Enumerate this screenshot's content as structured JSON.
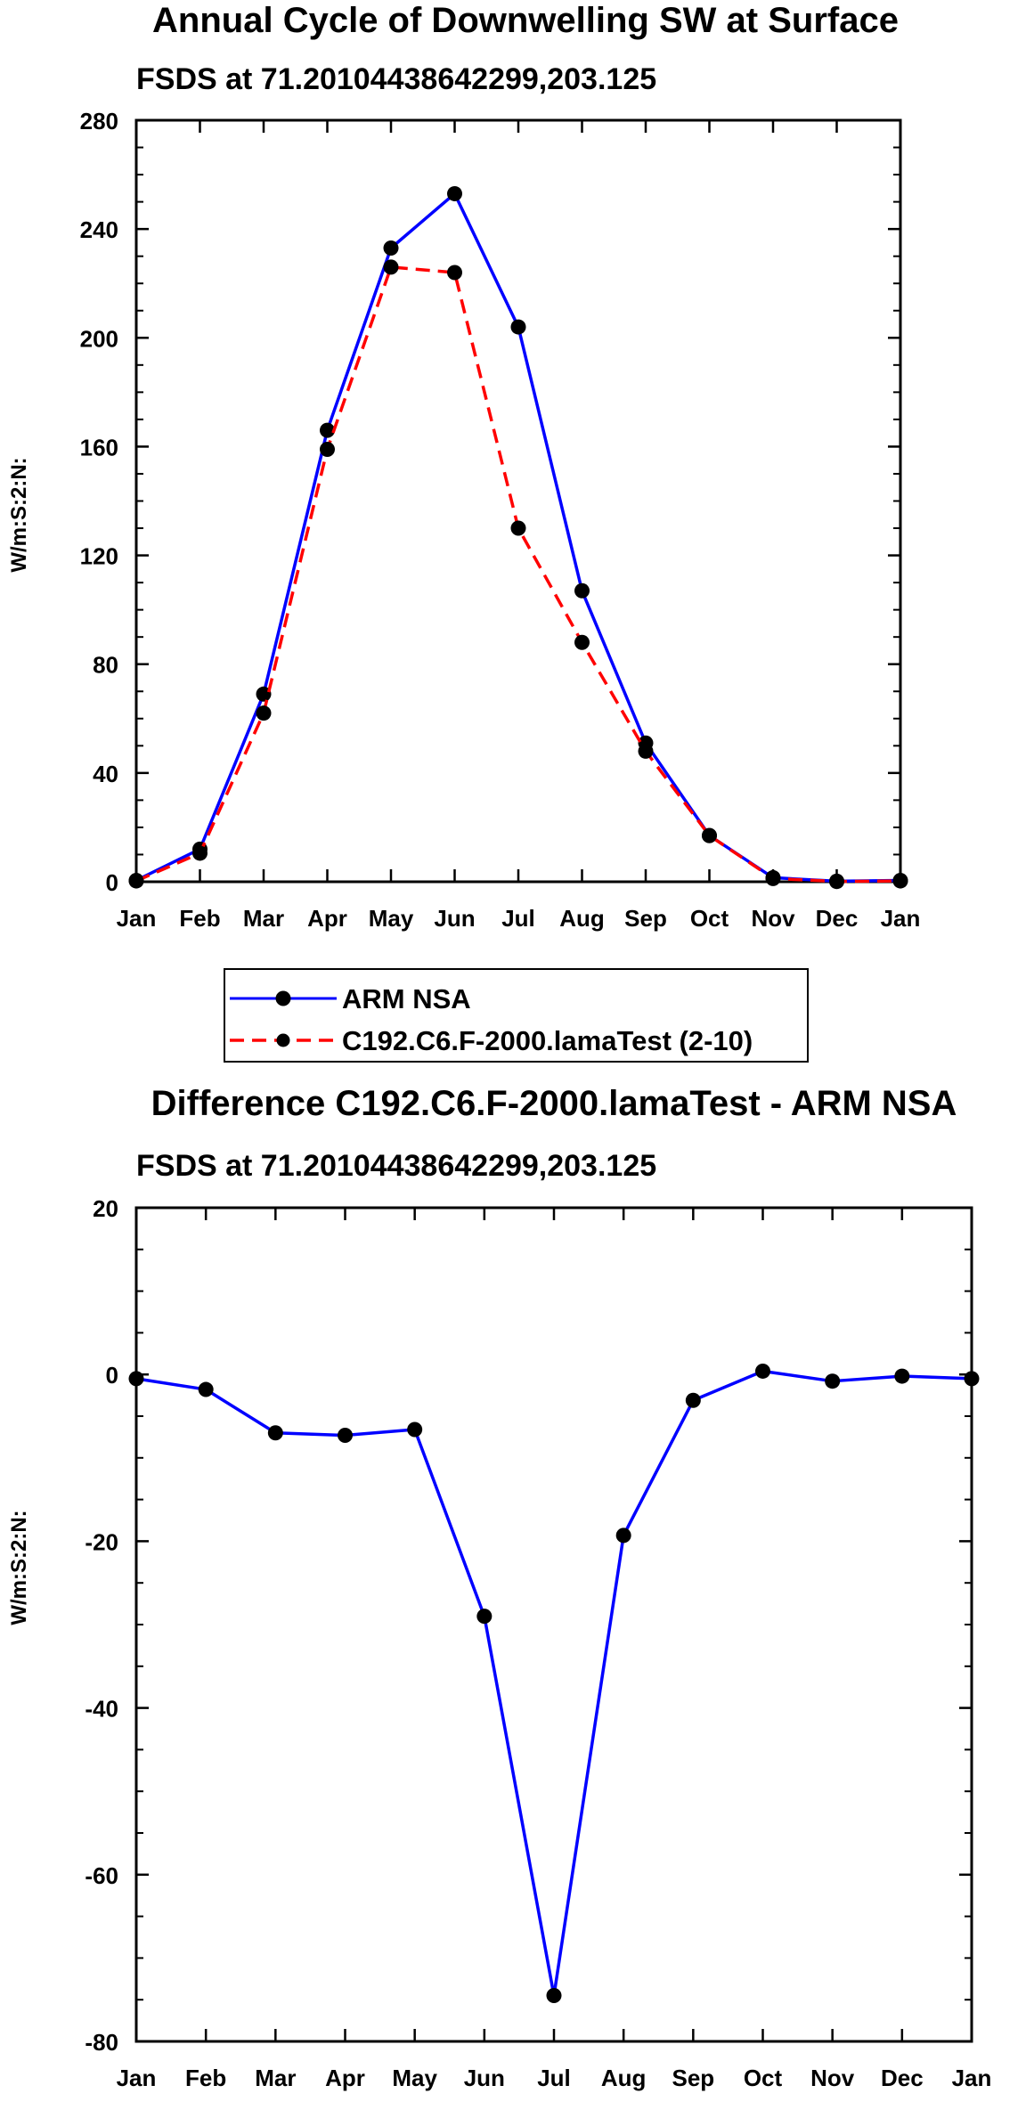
{
  "chart_data": [
    {
      "type": "line",
      "title": "Annual Cycle of Downwelling SW at Surface",
      "subtitle": "FSDS at 71.20104438642299,203.125",
      "xlabel": "",
      "ylabel": "W/m:S:2:N:",
      "categories": [
        "Jan",
        "Feb",
        "Mar",
        "Apr",
        "May",
        "Jun",
        "Jul",
        "Aug",
        "Sep",
        "Oct",
        "Nov",
        "Dec",
        "Jan"
      ],
      "ylim": [
        0,
        280
      ],
      "yticks": [
        0,
        40,
        80,
        120,
        160,
        200,
        240,
        280
      ],
      "series": [
        {
          "name": "ARM NSA",
          "color": "#0000ff",
          "dash": "solid",
          "values": [
            0.5,
            12,
            69,
            166,
            233,
            253,
            204,
            107,
            51,
            17,
            1.5,
            0.2,
            0.5
          ]
        },
        {
          "name": "C192.C6.F-2000.lamaTest (2-10)",
          "color": "#ff0000",
          "dash": "dashed",
          "values": [
            0.3,
            10.5,
            62,
            159,
            226,
            224,
            130,
            88,
            48,
            17,
            1.2,
            0.1,
            0.3
          ]
        }
      ]
    },
    {
      "type": "line",
      "title": "Difference C192.C6.F-2000.lamaTest - ARM NSA",
      "subtitle": "FSDS at 71.20104438642299,203.125",
      "xlabel": "",
      "ylabel": "W/m:S:2:N:",
      "categories": [
        "Jan",
        "Feb",
        "Mar",
        "Apr",
        "May",
        "Jun",
        "Jul",
        "Aug",
        "Sep",
        "Oct",
        "Nov",
        "Dec",
        "Jan"
      ],
      "ylim": [
        -80,
        20
      ],
      "yticks": [
        -80,
        -60,
        -40,
        -20,
        0,
        20
      ],
      "series": [
        {
          "name": "Difference",
          "color": "#0000ff",
          "dash": "solid",
          "values": [
            -0.5,
            -1.8,
            -7,
            -7.3,
            -6.6,
            -29,
            -74.5,
            -19.3,
            -3.1,
            0.4,
            -0.8,
            -0.2,
            -0.5
          ]
        }
      ]
    }
  ]
}
